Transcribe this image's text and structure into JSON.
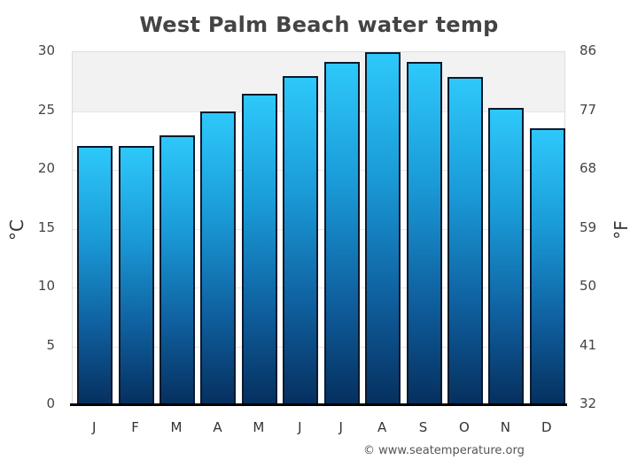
{
  "chart_data": {
    "type": "bar",
    "title": "West Palm Beach water temp",
    "categories": [
      "J",
      "F",
      "M",
      "A",
      "M",
      "J",
      "J",
      "A",
      "S",
      "O",
      "N",
      "D"
    ],
    "values": [
      22.0,
      22.0,
      22.9,
      25.0,
      26.5,
      28.0,
      29.2,
      30.0,
      29.2,
      27.9,
      25.3,
      23.5
    ],
    "series": [
      {
        "name": "Water temperature (°C)",
        "values": [
          22.0,
          22.0,
          22.9,
          25.0,
          26.5,
          28.0,
          29.2,
          30.0,
          29.2,
          27.9,
          25.3,
          23.5
        ]
      }
    ],
    "xlabel": "",
    "ylabel": "°C",
    "ylabel_right": "°F",
    "ylim": [
      0,
      30
    ],
    "yticks_left": [
      "30",
      "25",
      "20",
      "15",
      "10",
      "5",
      "0"
    ],
    "yticks_right": [
      "86",
      "77",
      "68",
      "59",
      "50",
      "41",
      "32"
    ],
    "grid": true,
    "shaded_band": [
      25,
      30
    ],
    "legend": "none",
    "bar_colors": {
      "top": "#2ec8fa",
      "bottom": "#06305f",
      "outline": "#0b1a2e"
    }
  },
  "credit": "© www.seatemperature.org"
}
